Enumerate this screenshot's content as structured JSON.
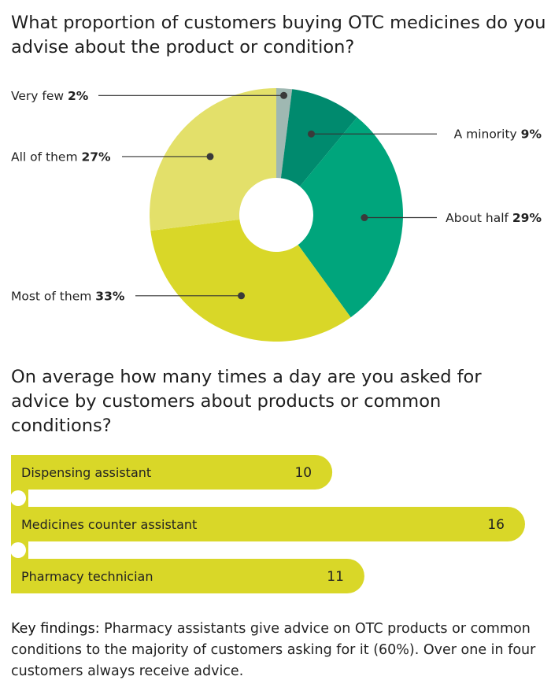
{
  "chart_data": [
    {
      "type": "pie",
      "title": "What proportion of customers buying OTC medicines do you advise about the product or condition?",
      "donut": true,
      "slices": [
        {
          "label": "Very few",
          "value": 2,
          "pct_text": "2%",
          "color": "#9fb8b2"
        },
        {
          "label": "A minority",
          "value": 9,
          "pct_text": "9%",
          "color": "#008a6e"
        },
        {
          "label": "About half",
          "value": 29,
          "pct_text": "29%",
          "color": "#00a57c"
        },
        {
          "label": "Most of them",
          "value": 33,
          "pct_text": "33%",
          "color": "#d9d728"
        },
        {
          "label": "All of them",
          "value": 27,
          "pct_text": "27%",
          "color": "#e3e06a"
        }
      ]
    },
    {
      "type": "bar",
      "orientation": "horizontal",
      "title": "On average how many times a day are you asked for advice by customers about products or common conditions?",
      "categories": [
        "Dispensing assistant",
        "Medicines counter assistant",
        "Pharmacy technician"
      ],
      "values": [
        10,
        16,
        11
      ],
      "color": "#d9d728"
    }
  ],
  "findings": {
    "label": "Key findings:",
    "text": " Pharmacy assistants give advice on OTC products or common conditions to the majority of customers asking for it (60%). Over one in four customers always receive advice."
  }
}
